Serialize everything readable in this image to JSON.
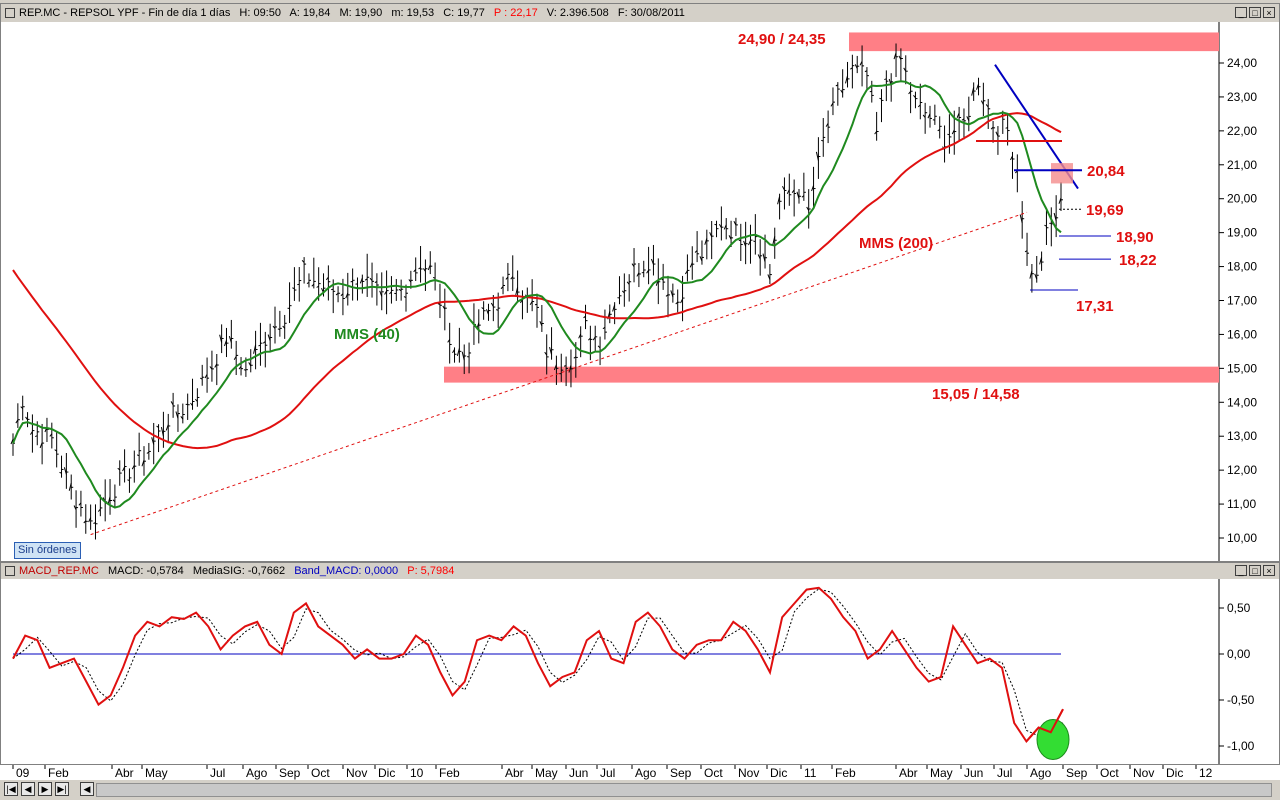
{
  "price_panel": {
    "title_parts": [
      "REP.MC - REPSOL YPF - Fin de día 1 días",
      "H: 09:50",
      "A: 19,84",
      "M: 19,90",
      "m: 19,53",
      "C: 19,77"
    ],
    "title_highlight": "P : 22,17",
    "title_tail": [
      "V: 2.396.508",
      "F: 30/08/2011"
    ],
    "highlight_color": "#ff0000"
  },
  "macd_panel": {
    "name": "MACD_REP.MC",
    "macd": "MACD: -0,5784",
    "signal": "MediaSIG: -0,7662",
    "band": "Band_MACD: 0,0000",
    "p": "P: 5,7984"
  },
  "orders_badge": "Sin órdenes",
  "window_buttons": [
    "_",
    "□",
    "×"
  ],
  "nav_buttons": [
    "|◀",
    "◀",
    "▶",
    "▶|",
    "◀"
  ],
  "chart_data": [
    {
      "type": "ohlc",
      "ylim": [
        9.6,
        24.5
      ],
      "yticks": [
        10,
        11,
        12,
        13,
        14,
        15,
        16,
        17,
        18,
        19,
        20,
        21,
        22,
        23,
        24
      ],
      "ytick_labels": [
        "10,00",
        "11,00",
        "12,00",
        "13,00",
        "14,00",
        "15,00",
        "16,00",
        "17,00",
        "18,00",
        "19,00",
        "20,00",
        "21,00",
        "22,00",
        "23,00",
        "24,00"
      ],
      "grid": false,
      "price_anchors": [
        [
          0,
          12.8
        ],
        [
          2,
          14.1
        ],
        [
          4,
          13.2
        ],
        [
          8,
          12.9
        ],
        [
          12,
          11.4
        ],
        [
          16,
          10.4
        ],
        [
          20,
          11.3
        ],
        [
          24,
          12.0
        ],
        [
          28,
          12.6
        ],
        [
          32,
          13.5
        ],
        [
          36,
          13.9
        ],
        [
          40,
          14.8
        ],
        [
          44,
          15.9
        ],
        [
          48,
          14.9
        ],
        [
          52,
          15.9
        ],
        [
          56,
          16.6
        ],
        [
          60,
          17.8
        ],
        [
          64,
          17.4
        ],
        [
          68,
          17.2
        ],
        [
          72,
          17.7
        ],
        [
          76,
          17.0
        ],
        [
          80,
          17.3
        ],
        [
          84,
          18.1
        ],
        [
          86,
          17.9
        ],
        [
          88,
          17.0
        ],
        [
          91,
          15.5
        ],
        [
          93,
          15.4
        ],
        [
          96,
          16.3
        ],
        [
          100,
          17.0
        ],
        [
          103,
          17.8
        ],
        [
          106,
          17.0
        ],
        [
          108,
          16.7
        ],
        [
          110,
          15.5
        ],
        [
          112,
          15.2
        ],
        [
          116,
          15.3
        ],
        [
          118,
          16.2
        ],
        [
          121,
          15.8
        ],
        [
          124,
          17.0
        ],
        [
          128,
          17.9
        ],
        [
          131,
          18.2
        ],
        [
          134,
          17.6
        ],
        [
          137,
          17.0
        ],
        [
          140,
          18.1
        ],
        [
          143,
          18.5
        ],
        [
          146,
          19.3
        ],
        [
          150,
          18.9
        ],
        [
          153,
          19.0
        ],
        [
          156,
          17.8
        ],
        [
          158,
          19.9
        ],
        [
          162,
          20.3
        ],
        [
          164,
          19.6
        ],
        [
          167,
          21.7
        ],
        [
          170,
          23.0
        ],
        [
          173,
          23.8
        ],
        [
          176,
          23.6
        ],
        [
          178,
          21.9
        ],
        [
          180,
          23.5
        ],
        [
          183,
          24.1
        ],
        [
          186,
          22.8
        ],
        [
          189,
          22.4
        ],
        [
          192,
          21.8
        ],
        [
          196,
          22.2
        ],
        [
          199,
          23.5
        ],
        [
          202,
          22.2
        ],
        [
          205,
          22.0
        ],
        [
          207,
          20.9
        ],
        [
          209,
          18.3
        ],
        [
          211,
          17.6
        ],
        [
          213,
          18.9
        ],
        [
          215,
          19.5
        ],
        [
          216,
          19.77
        ]
      ],
      "indicators": [
        {
          "label": "MMS (40)",
          "color": "#1f8a1f"
        },
        {
          "label": "MMS (200)",
          "color": "#e01010"
        }
      ],
      "zones": [
        {
          "label": "24,90 / 24,35",
          "from": 24.35,
          "to": 24.9,
          "color": "#ff7f86"
        },
        {
          "label": "15,05 / 14,58",
          "from": 14.58,
          "to": 15.05,
          "color": "#ff7f86"
        }
      ],
      "levels": [
        {
          "label": "20,84",
          "value": 20.84
        },
        {
          "label": "19,69",
          "value": 19.69
        },
        {
          "label": "18,90",
          "value": 18.9
        },
        {
          "label": "18,22",
          "value": 18.22
        },
        {
          "label": "17,31",
          "value": 17.31
        }
      ],
      "label_color": "#e01010"
    },
    {
      "type": "line",
      "ylim": [
        -1.15,
        0.85
      ],
      "yticks": [
        0.5,
        0,
        -0.5,
        -1
      ],
      "ytick_labels": [
        "0,50",
        "0,00",
        "-0,50",
        "-1,00"
      ],
      "series": [
        {
          "values": [
            -0.05,
            0.2,
            0.15,
            -0.15,
            -0.1,
            -0.05,
            -0.3,
            -0.55,
            -0.45,
            -0.15,
            0.2,
            0.35,
            0.3,
            0.4,
            0.38,
            0.45,
            0.3,
            0.05,
            0.2,
            0.3,
            0.35,
            0.1,
            0.0,
            0.45,
            0.55,
            0.3,
            0.2,
            0.1,
            -0.05,
            0.05,
            -0.05,
            -0.05,
            0.0,
            0.2,
            0.1,
            -0.2,
            -0.45,
            -0.3,
            0.15,
            0.2,
            0.15,
            0.3,
            0.2,
            -0.1,
            -0.35,
            -0.25,
            -0.2,
            0.15,
            0.25,
            -0.05,
            -0.1,
            0.35,
            0.45,
            0.3,
            0.05,
            -0.05,
            0.1,
            0.15,
            0.15,
            0.35,
            0.25,
            0.05,
            -0.2,
            0.4,
            0.55,
            0.7,
            0.72,
            0.6,
            0.4,
            0.25,
            -0.05,
            0.05,
            0.25,
            0.05,
            -0.15,
            -0.3,
            -0.25,
            0.3,
            0.1,
            -0.1,
            -0.05,
            -0.15,
            -0.75,
            -0.95,
            -0.8,
            -0.85,
            -0.6
          ],
          "color": "#e01010"
        }
      ],
      "zero_line_color": "#0000c0"
    }
  ],
  "x_axis": {
    "labels": [
      "09",
      "Feb",
      "Abr",
      "May",
      "Jul",
      "Ago",
      "Sep",
      "Oct",
      "Nov",
      "Dic",
      "10",
      "Feb",
      "Abr",
      "May",
      "Jun",
      "Jul",
      "Ago",
      "Sep",
      "Oct",
      "Nov",
      "Dic",
      "11",
      "Feb",
      "Abr",
      "May",
      "Jun",
      "Jul",
      "Ago",
      "Sep",
      "Oct",
      "Nov",
      "Dic",
      "12"
    ]
  }
}
